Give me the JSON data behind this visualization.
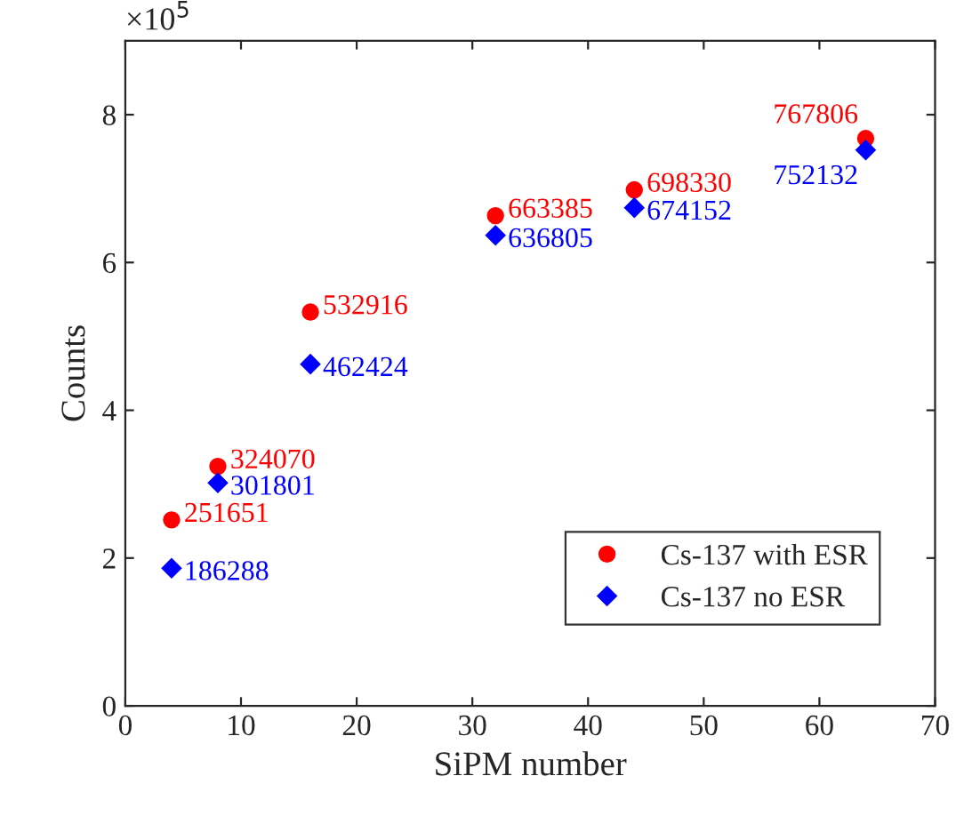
{
  "chart_data": {
    "type": "scatter",
    "xlabel": "SiPM number",
    "ylabel": "Counts",
    "x": [
      4,
      8,
      16,
      32,
      44,
      64
    ],
    "series": [
      {
        "name": "Cs-137 with ESR",
        "color": "#ff0000",
        "marker": "circle",
        "values": [
          2.51651,
          3.2407,
          5.32916,
          6.63385,
          6.9833,
          7.67806
        ]
      },
      {
        "name": "Cs-137 no ESR",
        "color": "#0000ff",
        "marker": "diamond",
        "values": [
          1.86288,
          3.01801,
          4.62424,
          6.36805,
          6.74152,
          7.52132
        ]
      }
    ],
    "xlim": [
      0,
      70
    ],
    "xticks": [
      0,
      10,
      20,
      30,
      40,
      50,
      60,
      70
    ],
    "ylim": [
      0,
      9
    ],
    "yticks": [
      0,
      2,
      4,
      6,
      8
    ],
    "annotations": [
      "×10$^{5}$",
      {
        "text": "251651",
        "x": 4,
        "y": 2.51651
      },
      {
        "text": "324070",
        "x": 8,
        "y": 3.2407
      },
      {
        "text": "532916",
        "x": 16,
        "y": 5.32916
      },
      {
        "text": "663385",
        "x": 32,
        "y": 6.63385
      },
      {
        "text": "698330",
        "x": 44,
        "y": 6.9833
      },
      {
        "text": "767806",
        "x": 64,
        "y": 7.67806
      },
      {
        "text": "186288",
        "x": 4,
        "y": 1.86288
      },
      {
        "text": "301801",
        "x": 8,
        "y": 3.01801
      },
      {
        "text": "462424",
        "x": 16,
        "y": 4.62424
      },
      {
        "text": "636805",
        "x": 32,
        "y": 6.36805
      },
      {
        "text": "674152",
        "x": 44,
        "y": 6.74152
      },
      {
        "text": "752132",
        "x": 64,
        "y": 7.52132
      }
    ],
    "legend": "bottom right",
    "grid": false
  }
}
